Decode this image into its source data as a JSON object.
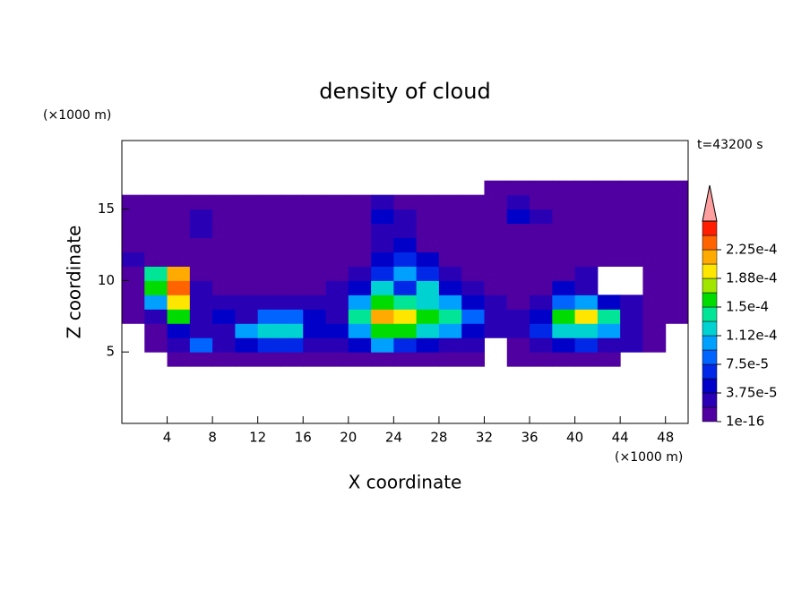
{
  "chart_data": {
    "type": "contour",
    "title": "density of cloud",
    "subtitle": "t=43200 s",
    "xlabel": "X coordinate",
    "ylabel": "Z coordinate",
    "x_unit": "(×1000 m)",
    "y_unit": "(×1000 m)",
    "xlim": [
      0,
      50
    ],
    "ylim": [
      0,
      19.8
    ],
    "xticks": [
      4,
      8,
      12,
      16,
      20,
      24,
      28,
      32,
      36,
      40,
      44,
      48
    ],
    "yticks": [
      5,
      10,
      15
    ],
    "x": [
      1,
      3,
      5,
      7,
      9,
      11,
      13,
      15,
      17,
      19,
      21,
      23,
      25,
      27,
      29,
      31,
      33,
      35,
      37,
      39,
      41,
      43,
      45,
      47,
      49
    ],
    "y": [
      4.5,
      5.5,
      6.5,
      7.5,
      8.5,
      9.5,
      10.5,
      11.5,
      12.5,
      13.5,
      14.5,
      15.5,
      16.5
    ],
    "z": [
      [
        null,
        null,
        5e-06,
        5e-06,
        5e-06,
        5e-06,
        5e-06,
        5e-06,
        5e-06,
        5e-06,
        5e-06,
        5e-06,
        5e-06,
        5e-06,
        5e-06,
        5e-06,
        null,
        5e-06,
        5e-06,
        5e-06,
        5e-06,
        5e-06,
        null,
        null,
        null
      ],
      [
        null,
        5e-06,
        2.5e-05,
        8.5e-05,
        2.5e-05,
        4.5e-05,
        6.5e-05,
        6.5e-05,
        2.5e-05,
        2.5e-05,
        4.5e-05,
        0.0001,
        6.5e-05,
        4.5e-05,
        2.5e-05,
        2.5e-05,
        null,
        5e-06,
        2.5e-05,
        4.5e-05,
        6.5e-05,
        2.5e-05,
        2.5e-05,
        5e-06,
        null
      ],
      [
        null,
        5e-06,
        4.5e-05,
        2.5e-05,
        2.5e-05,
        0.0001,
        0.00012,
        0.00012,
        4.5e-05,
        4.5e-05,
        0.0001,
        0.00016,
        0.00016,
        0.00012,
        0.0001,
        4.5e-05,
        2.5e-05,
        2.5e-05,
        6.5e-05,
        0.00012,
        0.00012,
        0.0001,
        2.5e-05,
        5e-06,
        null
      ],
      [
        5e-06,
        2.5e-05,
        0.00016,
        2.5e-05,
        4.5e-05,
        2.5e-05,
        8.5e-05,
        8.5e-05,
        4.5e-05,
        2.5e-05,
        0.00014,
        0.00021,
        0.00019,
        0.00016,
        0.00014,
        8.5e-05,
        2.5e-05,
        2.5e-05,
        4.5e-05,
        0.00016,
        0.00019,
        0.00014,
        2.5e-05,
        5e-06,
        5e-06
      ],
      [
        5e-06,
        0.0001,
        0.00019,
        2.5e-05,
        2.5e-05,
        2.5e-05,
        2.5e-05,
        2.5e-05,
        2.5e-05,
        2.5e-05,
        0.0001,
        0.00016,
        0.00014,
        0.00012,
        0.0001,
        4.5e-05,
        2.5e-05,
        5e-06,
        2.5e-05,
        8.5e-05,
        0.0001,
        4.5e-05,
        2.5e-05,
        5e-06,
        5e-06
      ],
      [
        5e-06,
        0.00016,
        0.00023,
        2.5e-05,
        5e-06,
        5e-06,
        5e-06,
        5e-06,
        5e-06,
        2.5e-05,
        4.5e-05,
        0.00012,
        6.5e-05,
        0.00012,
        4.5e-05,
        2.5e-05,
        5e-06,
        5e-06,
        5e-06,
        4.5e-05,
        2.5e-05,
        null,
        null,
        5e-06,
        5e-06
      ],
      [
        5e-06,
        0.00014,
        0.00021,
        5e-06,
        5e-06,
        5e-06,
        5e-06,
        5e-06,
        5e-06,
        5e-06,
        2.5e-05,
        6.5e-05,
        0.0001,
        6.5e-05,
        2.5e-05,
        5e-06,
        5e-06,
        5e-06,
        5e-06,
        5e-06,
        2.5e-05,
        null,
        null,
        5e-06,
        5e-06
      ],
      [
        2.5e-05,
        5e-06,
        5e-06,
        5e-06,
        5e-06,
        5e-06,
        5e-06,
        5e-06,
        5e-06,
        5e-06,
        5e-06,
        4.5e-05,
        6.5e-05,
        4.5e-05,
        5e-06,
        5e-06,
        5e-06,
        5e-06,
        5e-06,
        5e-06,
        5e-06,
        5e-06,
        5e-06,
        5e-06,
        5e-06
      ],
      [
        5e-06,
        5e-06,
        5e-06,
        5e-06,
        5e-06,
        5e-06,
        5e-06,
        5e-06,
        5e-06,
        5e-06,
        5e-06,
        2.5e-05,
        4.5e-05,
        5e-06,
        5e-06,
        5e-06,
        5e-06,
        5e-06,
        5e-06,
        5e-06,
        5e-06,
        5e-06,
        5e-06,
        5e-06,
        5e-06
      ],
      [
        5e-06,
        5e-06,
        5e-06,
        2.5e-05,
        5e-06,
        5e-06,
        5e-06,
        5e-06,
        5e-06,
        5e-06,
        5e-06,
        2.5e-05,
        2.5e-05,
        5e-06,
        5e-06,
        5e-06,
        5e-06,
        5e-06,
        5e-06,
        5e-06,
        5e-06,
        5e-06,
        5e-06,
        5e-06,
        5e-06
      ],
      [
        5e-06,
        5e-06,
        5e-06,
        2.5e-05,
        5e-06,
        5e-06,
        5e-06,
        5e-06,
        5e-06,
        5e-06,
        5e-06,
        4.5e-05,
        2.5e-05,
        5e-06,
        5e-06,
        5e-06,
        5e-06,
        4.5e-05,
        2.5e-05,
        5e-06,
        5e-06,
        5e-06,
        5e-06,
        5e-06,
        5e-06
      ],
      [
        5e-06,
        5e-06,
        5e-06,
        5e-06,
        5e-06,
        5e-06,
        5e-06,
        5e-06,
        5e-06,
        5e-06,
        5e-06,
        2.5e-05,
        5e-06,
        5e-06,
        5e-06,
        5e-06,
        5e-06,
        2.5e-05,
        5e-06,
        5e-06,
        5e-06,
        5e-06,
        5e-06,
        5e-06,
        5e-06
      ],
      [
        null,
        null,
        null,
        null,
        null,
        null,
        null,
        null,
        null,
        null,
        null,
        null,
        null,
        null,
        null,
        null,
        5e-06,
        5e-06,
        5e-06,
        5e-06,
        5e-06,
        5e-06,
        5e-06,
        5e-06,
        5e-06
      ]
    ],
    "levels": [
      1e-16,
      1.875e-05,
      3.75e-05,
      5.625e-05,
      7.5e-05,
      9.375e-05,
      0.0001125,
      0.00013125,
      0.00015,
      0.00016875,
      0.0001875,
      0.00020625,
      0.000225,
      0.00024375,
      0.0002625
    ],
    "colors": [
      "#5000a0",
      "#2a00b4",
      "#0000c8",
      "#0028e6",
      "#0064ff",
      "#00a0ff",
      "#00d2d2",
      "#00e696",
      "#00dc00",
      "#a0e600",
      "#ffe600",
      "#ffaa00",
      "#ff6400",
      "#ff1e00"
    ],
    "extend_color": "#ffa0a0",
    "colorbar_ticks": [
      {
        "value": 1e-16,
        "label": "1e-16"
      },
      {
        "value": 3.75e-05,
        "label": "3.75e-5"
      },
      {
        "value": 7.5e-05,
        "label": "7.5e-5"
      },
      {
        "value": 0.0001125,
        "label": "1.12e-4"
      },
      {
        "value": 0.00015,
        "label": "1.5e-4"
      },
      {
        "value": 0.0001875,
        "label": "1.88e-4"
      },
      {
        "value": 0.000225,
        "label": "2.25e-4"
      }
    ]
  }
}
